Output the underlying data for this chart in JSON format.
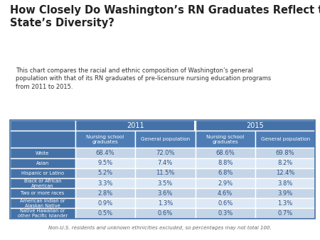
{
  "title": "How Closely Do Washington’s RN Graduates Reflect the\nState’s Diversity?",
  "subtitle": "This chart compares the racial and ethnic composition of Washington’s general\npopulation with that of its RN graduates of pre-licensure nursing education programs\nfrom 2011 to 2015.",
  "footnote": "Non-U.S. residents and unknown ethnicities excluded, so percentages may not total 100.",
  "year_headers": [
    "2011",
    "2015"
  ],
  "col_headers": [
    "Nursing school\ngraduates",
    "General population",
    "Nursing school\ngraduates",
    "General population"
  ],
  "row_labels": [
    "White",
    "Asian",
    "Hispanic or Latino",
    "Black or African\nAmerican",
    "Two or more races",
    "American Indian or\nAlaskan Native",
    "Native Hawaiian or\nother Pacific Islander"
  ],
  "data": [
    [
      "68.4%",
      "72.0%",
      "68.6%",
      "69.8%"
    ],
    [
      "9.5%",
      "7.4%",
      "8.8%",
      "8.2%"
    ],
    [
      "5.2%",
      "11.5%",
      "6.8%",
      "12.4%"
    ],
    [
      "3.3%",
      "3.5%",
      "2.9%",
      "3.8%"
    ],
    [
      "2.8%",
      "3.6%",
      "4.6%",
      "3.9%"
    ],
    [
      "0.9%",
      "1.3%",
      "0.6%",
      "1.3%"
    ],
    [
      "0.5%",
      "0.6%",
      "0.3%",
      "0.7%"
    ]
  ],
  "header_bg_color": "#4472a8",
  "header_text_color": "#ffffff",
  "row_label_bg_color": "#4472a8",
  "data_bg_color_even": "#c5d5e8",
  "data_bg_color_odd": "#dce8f5",
  "data_text_color": "#2b5080",
  "title_color": "#222222",
  "subtitle_color": "#333333",
  "footnote_color": "#666666",
  "outer_border_color": "#4472a8",
  "divider_color": "#ffffff"
}
